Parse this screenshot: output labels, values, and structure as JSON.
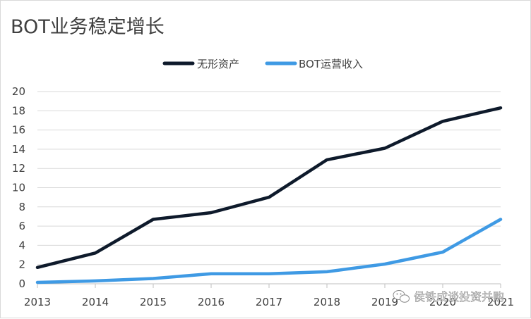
{
  "chart_data": {
    "type": "line",
    "title": "BOT业务稳定增长",
    "xlabel": "",
    "ylabel": "",
    "categories": [
      "2013",
      "2014",
      "2015",
      "2016",
      "2017",
      "2018",
      "2019",
      "2020",
      "2021"
    ],
    "ylim": [
      0,
      20
    ],
    "yticks": [
      "0",
      "2",
      "4",
      "6",
      "8",
      "10",
      "12",
      "14",
      "16",
      "18",
      "20"
    ],
    "grid": true,
    "legend_position": "top-center",
    "series": [
      {
        "name": "无形资产",
        "color": "#0e1a2b",
        "values": [
          1.7,
          3.2,
          6.7,
          7.4,
          9.0,
          12.9,
          14.1,
          16.9,
          18.3
        ]
      },
      {
        "name": "BOT运营收入",
        "color": "#3f9ae4",
        "values": [
          0.15,
          0.3,
          0.55,
          1.05,
          1.05,
          1.25,
          2.05,
          3.3,
          6.7
        ]
      }
    ]
  },
  "watermark": {
    "text": "侯铁成谈投资并购",
    "icon": "wechat-icon"
  }
}
